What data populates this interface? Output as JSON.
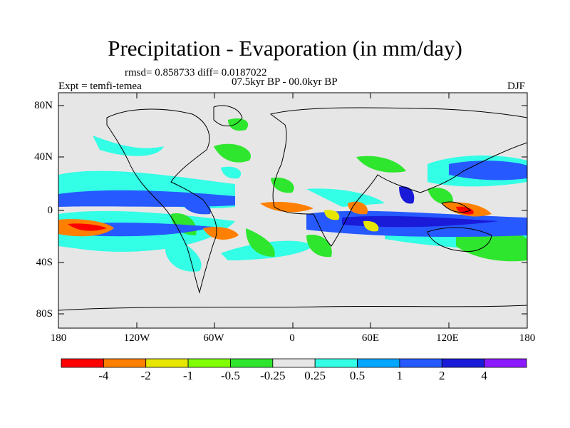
{
  "title": "Precipitation - Evaporation (in mm/day)",
  "stats": "rmsd= 0.858733 diff= 0.0187022",
  "period": "07.5kyr BP - 00.0kyr BP",
  "experiment": "Expt = temfi-temea",
  "season": "DJF",
  "lat_ticks": [
    "80N",
    "40N",
    "0",
    "40S",
    "80S"
  ],
  "lon_ticks": [
    "180",
    "120W",
    "60W",
    "0",
    "60E",
    "120E",
    "180"
  ],
  "colorbar": {
    "colors": [
      "#ff0000",
      "#ff8000",
      "#e6e600",
      "#80ff00",
      "#2ee62e",
      "#e6e6e6",
      "#33ffe6",
      "#00a6ff",
      "#2659ff",
      "#1a1ad9",
      "#8c1aff"
    ],
    "labels": [
      "-4",
      "-2",
      "-1",
      "-0.5",
      "-0.25",
      "0.25",
      "0.5",
      "1",
      "2",
      "4"
    ]
  }
}
